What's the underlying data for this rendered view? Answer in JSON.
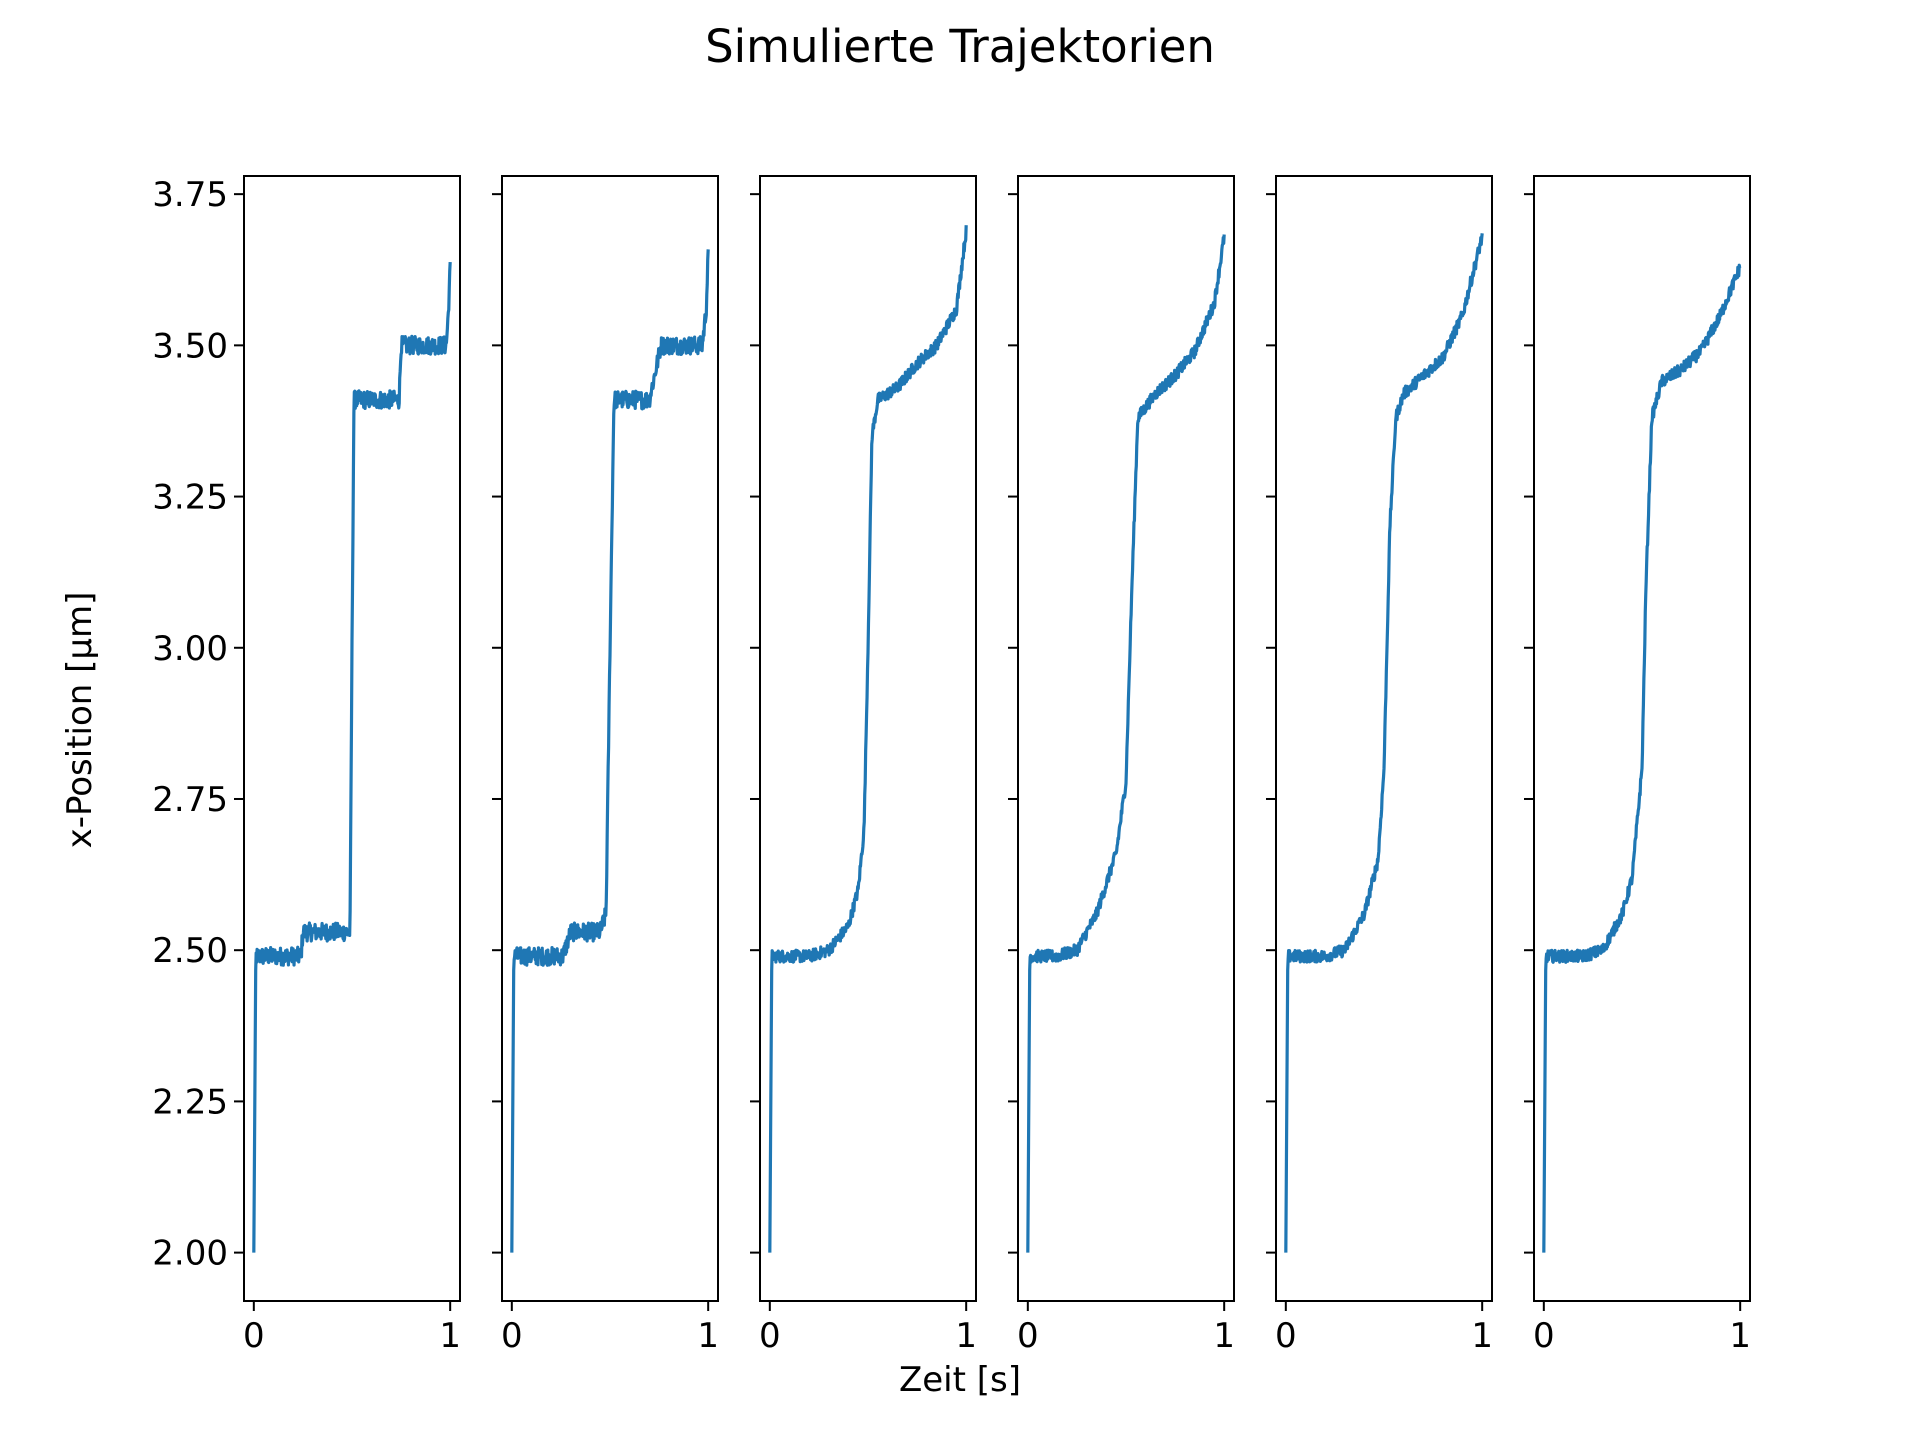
{
  "chart_data": {
    "type": "line",
    "title": "Simulierte Trajektorien",
    "xlabel": "Zeit [s]",
    "ylabel": "x-Position [µm]",
    "series_color": "#1f77b4",
    "shared_y": true,
    "ylim": [
      1.92,
      3.78
    ],
    "xlim": [
      -0.05,
      1.05
    ],
    "yticks": [
      2.0,
      2.25,
      2.5,
      2.75,
      3.0,
      3.25,
      3.5,
      3.75
    ],
    "ytick_labels": [
      "2.00",
      "2.25",
      "2.50",
      "2.75",
      "3.00",
      "3.25",
      "3.50",
      "3.75"
    ],
    "xticks": [
      0,
      1
    ],
    "xtick_labels": [
      "0",
      "1"
    ],
    "grid": false,
    "legend": false,
    "panels": [
      {
        "x": [
          0,
          0.01,
          0.1,
          0.24,
          0.25,
          0.3,
          0.49,
          0.5,
          0.51,
          0.55,
          0.74,
          0.75,
          0.8,
          0.98,
          0.99,
          1.0
        ],
        "y": [
          2.0,
          2.49,
          2.49,
          2.49,
          2.53,
          2.53,
          2.53,
          3.0,
          3.41,
          3.41,
          3.41,
          3.5,
          3.5,
          3.5,
          3.55,
          3.63
        ],
        "noise": 0.03
      },
      {
        "x": [
          0,
          0.01,
          0.1,
          0.26,
          0.3,
          0.45,
          0.48,
          0.5,
          0.52,
          0.55,
          0.7,
          0.76,
          0.8,
          0.97,
          0.99,
          1.0
        ],
        "y": [
          2.0,
          2.49,
          2.49,
          2.49,
          2.53,
          2.53,
          2.56,
          3.0,
          3.41,
          3.41,
          3.41,
          3.5,
          3.5,
          3.5,
          3.56,
          3.65
        ],
        "noise": 0.03
      },
      {
        "x": [
          0,
          0.01,
          0.2,
          0.3,
          0.4,
          0.45,
          0.48,
          0.5,
          0.52,
          0.55,
          0.65,
          0.75,
          0.85,
          0.95,
          1.0
        ],
        "y": [
          2.0,
          2.49,
          2.49,
          2.5,
          2.54,
          2.6,
          2.7,
          3.0,
          3.35,
          3.41,
          3.43,
          3.47,
          3.5,
          3.56,
          3.69
        ],
        "noise": 0.02
      },
      {
        "x": [
          0,
          0.01,
          0.15,
          0.25,
          0.35,
          0.45,
          0.5,
          0.53,
          0.56,
          0.65,
          0.75,
          0.85,
          0.95,
          1.0
        ],
        "y": [
          2.0,
          2.49,
          2.49,
          2.5,
          2.56,
          2.66,
          2.78,
          3.1,
          3.38,
          3.42,
          3.45,
          3.49,
          3.57,
          3.68
        ],
        "noise": 0.02
      },
      {
        "x": [
          0,
          0.01,
          0.2,
          0.3,
          0.4,
          0.47,
          0.5,
          0.53,
          0.56,
          0.6,
          0.7,
          0.8,
          0.9,
          1.0
        ],
        "y": [
          2.0,
          2.49,
          2.49,
          2.5,
          2.56,
          2.65,
          2.8,
          3.2,
          3.38,
          3.42,
          3.45,
          3.48,
          3.55,
          3.68
        ],
        "noise": 0.02
      },
      {
        "x": [
          0,
          0.01,
          0.2,
          0.3,
          0.4,
          0.45,
          0.5,
          0.52,
          0.55,
          0.6,
          0.7,
          0.8,
          0.9,
          1.0
        ],
        "y": [
          2.0,
          2.49,
          2.49,
          2.5,
          2.56,
          2.62,
          2.8,
          3.1,
          3.38,
          3.44,
          3.46,
          3.49,
          3.55,
          3.63
        ],
        "noise": 0.02
      }
    ]
  }
}
